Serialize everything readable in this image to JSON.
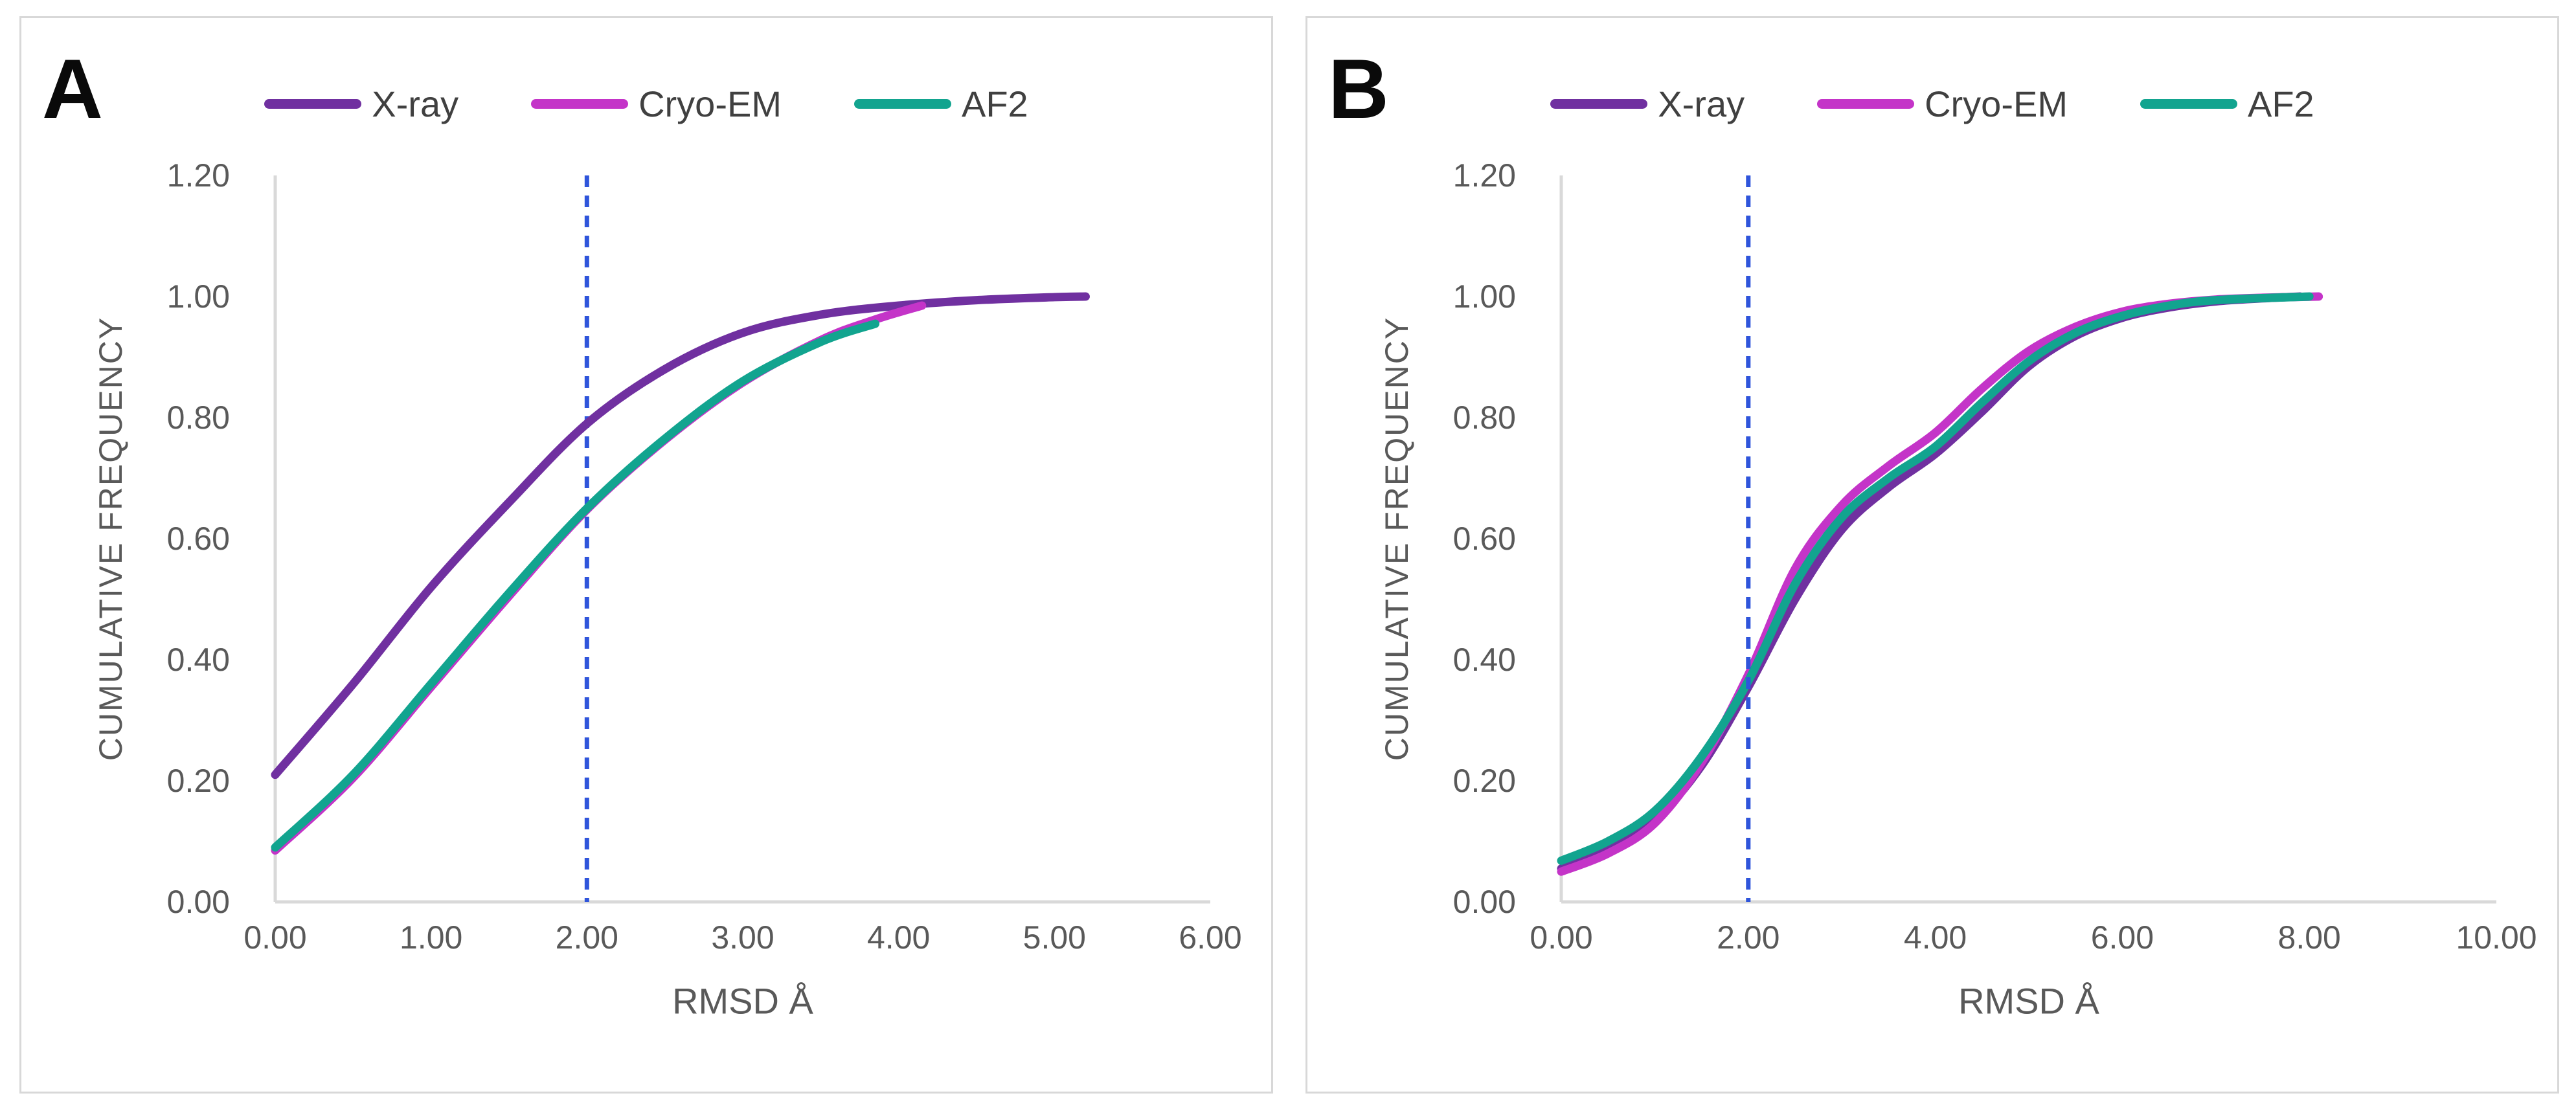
{
  "figure": {
    "background": "#FFFFFF"
  },
  "style": {
    "panel_border_color": "#D8D8D8",
    "axis_line_color": "#D9D9D9",
    "tick_text_color": "#595959",
    "axis_title_color": "#595959",
    "legend_text_color": "#404040",
    "panel_label_color": "#0A0A0A",
    "threshold_line_color": "#2F55DB",
    "series_colors": {
      "X-ray": "#7030A0",
      "Cryo-EM": "#C434C8",
      "AF2": "#12A48F"
    }
  },
  "chart_data": [
    {
      "panel_label": "A",
      "type": "line",
      "title": "",
      "xlabel": "RMSD Å",
      "ylabel": "CUMULATIVE FREQUENCY",
      "xlim": [
        0,
        6
      ],
      "xtick_step": 1,
      "xtick_labels": [
        "0.00",
        "1.00",
        "2.00",
        "3.00",
        "4.00",
        "5.00",
        "6.00"
      ],
      "ylim": [
        0,
        1.2
      ],
      "ytick_step": 0.2,
      "ytick_labels": [
        "0.00",
        "0.20",
        "0.40",
        "0.60",
        "0.80",
        "1.00",
        "1.20"
      ],
      "grid": false,
      "legend_position": "top-center",
      "vline": {
        "x": 2.0,
        "style": "dashed",
        "color": "#2F55DB",
        "over_curves": false
      },
      "series": [
        {
          "name": "X-ray",
          "color": "#7030A0",
          "points": [
            [
              0,
              0.21
            ],
            [
              0.5,
              0.36
            ],
            [
              1,
              0.52
            ],
            [
              1.5,
              0.66
            ],
            [
              2,
              0.79
            ],
            [
              2.5,
              0.88
            ],
            [
              3,
              0.94
            ],
            [
              3.5,
              0.97
            ],
            [
              4,
              0.985
            ],
            [
              4.5,
              0.994
            ],
            [
              5,
              0.999
            ],
            [
              5.2,
              1.0
            ]
          ]
        },
        {
          "name": "Cryo-EM",
          "color": "#C434C8",
          "points": [
            [
              0,
              0.085
            ],
            [
              0.5,
              0.205
            ],
            [
              1,
              0.355
            ],
            [
              1.5,
              0.505
            ],
            [
              2,
              0.648
            ],
            [
              2.5,
              0.763
            ],
            [
              3,
              0.858
            ],
            [
              3.5,
              0.928
            ],
            [
              3.85,
              0.962
            ],
            [
              4.15,
              0.985
            ]
          ]
        },
        {
          "name": "AF2",
          "color": "#12A48F",
          "points": [
            [
              0,
              0.09
            ],
            [
              0.5,
              0.21
            ],
            [
              1,
              0.36
            ],
            [
              1.5,
              0.51
            ],
            [
              2,
              0.65
            ],
            [
              2.5,
              0.765
            ],
            [
              3,
              0.86
            ],
            [
              3.5,
              0.925
            ],
            [
              3.85,
              0.955
            ]
          ]
        }
      ]
    },
    {
      "panel_label": "B",
      "type": "line",
      "title": "",
      "xlabel": "RMSD Å",
      "ylabel": "CUMULATIVE FREQUENCY",
      "xlim": [
        0,
        10
      ],
      "xtick_step": 2,
      "xtick_labels": [
        "0.00",
        "2.00",
        "4.00",
        "6.00",
        "8.00",
        "10.00"
      ],
      "ylim": [
        0,
        1.2
      ],
      "ytick_step": 0.2,
      "ytick_labels": [
        "0.00",
        "0.20",
        "0.40",
        "0.60",
        "0.80",
        "1.00",
        "1.20"
      ],
      "grid": false,
      "legend_position": "top-center",
      "vline": {
        "x": 2.0,
        "style": "dashed",
        "color": "#2F55DB",
        "over_curves": true
      },
      "series": [
        {
          "name": "X-ray",
          "color": "#7030A0",
          "points": [
            [
              0,
              0.055
            ],
            [
              0.5,
              0.085
            ],
            [
              1,
              0.135
            ],
            [
              1.5,
              0.225
            ],
            [
              2,
              0.355
            ],
            [
              2.5,
              0.5
            ],
            [
              3,
              0.615
            ],
            [
              3.5,
              0.685
            ],
            [
              4,
              0.74
            ],
            [
              4.5,
              0.81
            ],
            [
              5,
              0.885
            ],
            [
              5.5,
              0.935
            ],
            [
              6,
              0.965
            ],
            [
              6.5,
              0.982
            ],
            [
              7,
              0.992
            ],
            [
              7.5,
              0.997
            ],
            [
              7.9,
              1.0
            ]
          ]
        },
        {
          "name": "Cryo-EM",
          "color": "#C434C8",
          "points": [
            [
              0,
              0.05
            ],
            [
              0.5,
              0.08
            ],
            [
              1,
              0.13
            ],
            [
              1.5,
              0.23
            ],
            [
              2,
              0.375
            ],
            [
              2.5,
              0.55
            ],
            [
              3,
              0.655
            ],
            [
              3.5,
              0.72
            ],
            [
              4,
              0.775
            ],
            [
              4.5,
              0.848
            ],
            [
              5,
              0.91
            ],
            [
              5.5,
              0.95
            ],
            [
              6,
              0.975
            ],
            [
              6.5,
              0.988
            ],
            [
              7,
              0.995
            ],
            [
              7.5,
              0.998
            ],
            [
              8.1,
              1.0
            ]
          ]
        },
        {
          "name": "AF2",
          "color": "#12A48F",
          "points": [
            [
              0,
              0.068
            ],
            [
              0.5,
              0.1
            ],
            [
              1,
              0.15
            ],
            [
              1.5,
              0.24
            ],
            [
              2,
              0.365
            ],
            [
              2.5,
              0.525
            ],
            [
              3,
              0.635
            ],
            [
              3.5,
              0.7
            ],
            [
              4,
              0.752
            ],
            [
              4.5,
              0.825
            ],
            [
              5,
              0.893
            ],
            [
              5.5,
              0.94
            ],
            [
              6,
              0.968
            ],
            [
              6.5,
              0.985
            ],
            [
              7,
              0.994
            ],
            [
              8,
              1.0
            ]
          ]
        }
      ]
    }
  ]
}
